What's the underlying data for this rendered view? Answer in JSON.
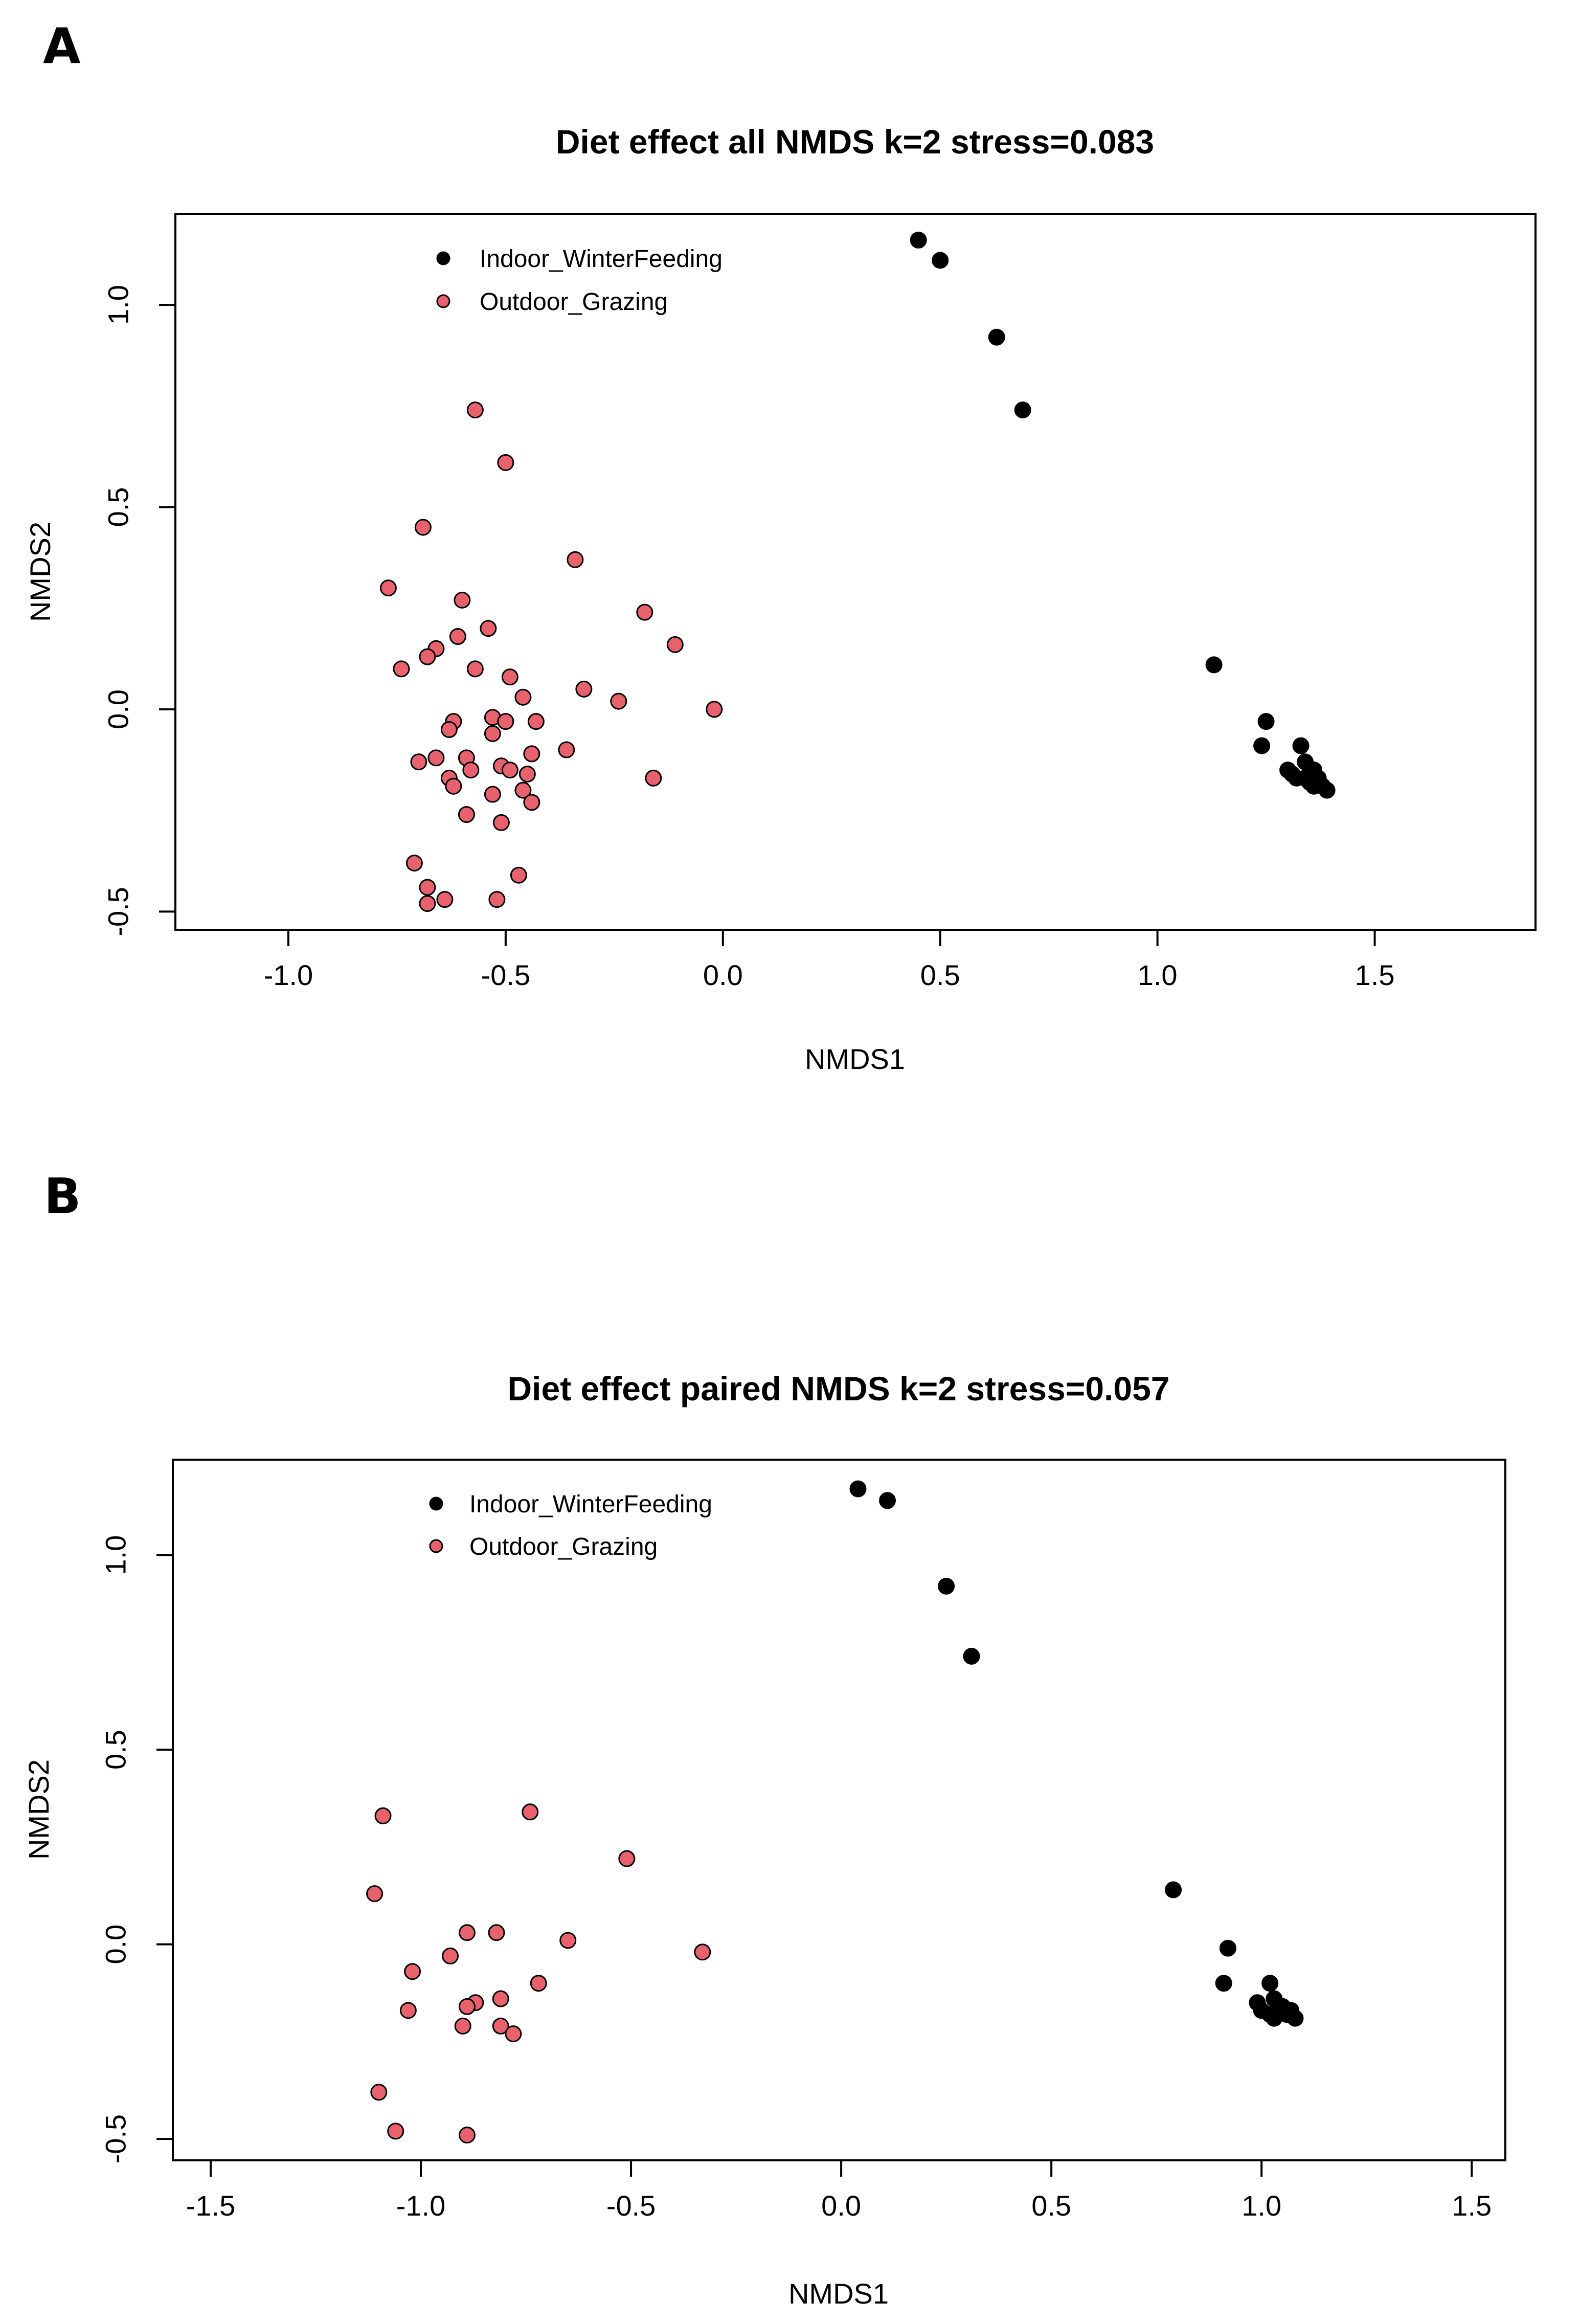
{
  "chart_data": [
    {
      "type": "scatter",
      "panel_label": "A",
      "title": "Diet effect all NMDS k=2 stress=0.083",
      "xlabel": "NMDS1",
      "ylabel": "NMDS2",
      "xlim": [
        -1.26,
        1.87
      ],
      "ylim": [
        -0.545,
        1.225
      ],
      "x_ticks": [
        -1.0,
        -0.5,
        0.0,
        0.5,
        1.0,
        1.5
      ],
      "x_tick_labels": [
        "-1.0",
        "-0.5",
        "0.0",
        "0.5",
        "1.0",
        "1.5"
      ],
      "y_ticks": [
        -0.5,
        0.0,
        0.5,
        1.0
      ],
      "y_tick_labels": [
        "-0.5",
        "0.0",
        "0.5",
        "1.0"
      ],
      "legend": {
        "position": "top-left",
        "entries": [
          "Indoor_WinterFeeding",
          "Outdoor_Grazing"
        ]
      },
      "series": [
        {
          "name": "Indoor_WinterFeeding",
          "color": "#000000",
          "points": [
            [
              0.45,
              1.16
            ],
            [
              0.5,
              1.11
            ],
            [
              0.63,
              0.92
            ],
            [
              0.69,
              0.74
            ],
            [
              1.13,
              0.11
            ],
            [
              1.25,
              -0.03
            ],
            [
              1.24,
              -0.09
            ],
            [
              1.33,
              -0.09
            ],
            [
              1.34,
              -0.13
            ],
            [
              1.3,
              -0.15
            ],
            [
              1.31,
              -0.16
            ],
            [
              1.36,
              -0.15
            ],
            [
              1.37,
              -0.17
            ],
            [
              1.35,
              -0.18
            ],
            [
              1.37,
              -0.18
            ],
            [
              1.38,
              -0.19
            ],
            [
              1.39,
              -0.2
            ],
            [
              1.36,
              -0.19
            ],
            [
              1.34,
              -0.17
            ],
            [
              1.32,
              -0.17
            ]
          ]
        },
        {
          "name": "Outdoor_Grazing",
          "color": "#e8626e",
          "points": [
            [
              -0.57,
              0.74
            ],
            [
              -0.5,
              0.61
            ],
            [
              -0.69,
              0.45
            ],
            [
              -0.34,
              0.37
            ],
            [
              -0.77,
              0.3
            ],
            [
              -0.6,
              0.27
            ],
            [
              -0.18,
              0.24
            ],
            [
              -0.54,
              0.2
            ],
            [
              -0.61,
              0.18
            ],
            [
              -0.66,
              0.15
            ],
            [
              -0.11,
              0.16
            ],
            [
              -0.68,
              0.13
            ],
            [
              -0.74,
              0.1
            ],
            [
              -0.57,
              0.1
            ],
            [
              -0.49,
              0.08
            ],
            [
              -0.32,
              0.05
            ],
            [
              -0.46,
              0.03
            ],
            [
              -0.24,
              0.02
            ],
            [
              -0.02,
              0.0
            ],
            [
              -0.53,
              -0.02
            ],
            [
              -0.5,
              -0.03
            ],
            [
              -0.43,
              -0.03
            ],
            [
              -0.62,
              -0.03
            ],
            [
              -0.63,
              -0.05
            ],
            [
              -0.53,
              -0.06
            ],
            [
              -0.36,
              -0.1
            ],
            [
              -0.59,
              -0.12
            ],
            [
              -0.66,
              -0.12
            ],
            [
              -0.7,
              -0.13
            ],
            [
              -0.44,
              -0.11
            ],
            [
              -0.51,
              -0.14
            ],
            [
              -0.58,
              -0.15
            ],
            [
              -0.49,
              -0.15
            ],
            [
              -0.45,
              -0.16
            ],
            [
              -0.16,
              -0.17
            ],
            [
              -0.63,
              -0.17
            ],
            [
              -0.62,
              -0.19
            ],
            [
              -0.46,
              -0.2
            ],
            [
              -0.53,
              -0.21
            ],
            [
              -0.44,
              -0.23
            ],
            [
              -0.59,
              -0.26
            ],
            [
              -0.51,
              -0.28
            ],
            [
              -0.71,
              -0.38
            ],
            [
              -0.47,
              -0.41
            ],
            [
              -0.68,
              -0.44
            ],
            [
              -0.64,
              -0.47
            ],
            [
              -0.52,
              -0.47
            ],
            [
              -0.68,
              -0.48
            ]
          ]
        }
      ]
    },
    {
      "type": "scatter",
      "panel_label": "B",
      "title": "Diet effect paired NMDS k=2 stress=0.057",
      "xlabel": "NMDS1",
      "ylabel": "NMDS2",
      "xlim": [
        -1.59,
        1.58
      ],
      "ylim": [
        -0.555,
        1.245
      ],
      "x_ticks": [
        -1.5,
        -1.0,
        -0.5,
        0.0,
        0.5,
        1.0,
        1.5
      ],
      "x_tick_labels": [
        "-1.5",
        "-1.0",
        "-0.5",
        "0.0",
        "0.5",
        "1.0",
        "1.5"
      ],
      "y_ticks": [
        -0.5,
        0.0,
        0.5,
        1.0
      ],
      "y_tick_labels": [
        "-0.5",
        "0.0",
        "0.5",
        "1.0"
      ],
      "legend": {
        "position": "top-left",
        "entries": [
          "Indoor_WinterFeeding",
          "Outdoor_Grazing"
        ]
      },
      "series": [
        {
          "name": "Indoor_WinterFeeding",
          "color": "#000000",
          "points": [
            [
              0.04,
              1.17
            ],
            [
              0.11,
              1.14
            ],
            [
              0.25,
              0.92
            ],
            [
              0.31,
              0.74
            ],
            [
              0.79,
              0.14
            ],
            [
              0.92,
              -0.01
            ],
            [
              0.91,
              -0.1
            ],
            [
              1.02,
              -0.1
            ],
            [
              0.99,
              -0.15
            ],
            [
              1.03,
              -0.14
            ],
            [
              1.05,
              -0.16
            ],
            [
              1.0,
              -0.17
            ],
            [
              1.04,
              -0.17
            ],
            [
              1.07,
              -0.17
            ],
            [
              1.02,
              -0.18
            ],
            [
              1.06,
              -0.18
            ],
            [
              1.08,
              -0.19
            ],
            [
              1.03,
              -0.19
            ]
          ]
        },
        {
          "name": "Outdoor_Grazing",
          "color": "#e8626e",
          "points": [
            [
              -1.09,
              0.33
            ],
            [
              -0.74,
              0.34
            ],
            [
              -0.51,
              0.22
            ],
            [
              -1.11,
              0.13
            ],
            [
              -0.89,
              0.03
            ],
            [
              -0.82,
              0.03
            ],
            [
              -0.65,
              0.01
            ],
            [
              -0.33,
              -0.02
            ],
            [
              -0.93,
              -0.03
            ],
            [
              -1.02,
              -0.07
            ],
            [
              -0.72,
              -0.1
            ],
            [
              -0.81,
              -0.14
            ],
            [
              -1.03,
              -0.17
            ],
            [
              -0.87,
              -0.15
            ],
            [
              -0.89,
              -0.16
            ],
            [
              -0.9,
              -0.21
            ],
            [
              -0.81,
              -0.21
            ],
            [
              -0.78,
              -0.23
            ],
            [
              -1.1,
              -0.38
            ],
            [
              -1.06,
              -0.48
            ],
            [
              -0.89,
              -0.49
            ]
          ]
        }
      ]
    }
  ]
}
